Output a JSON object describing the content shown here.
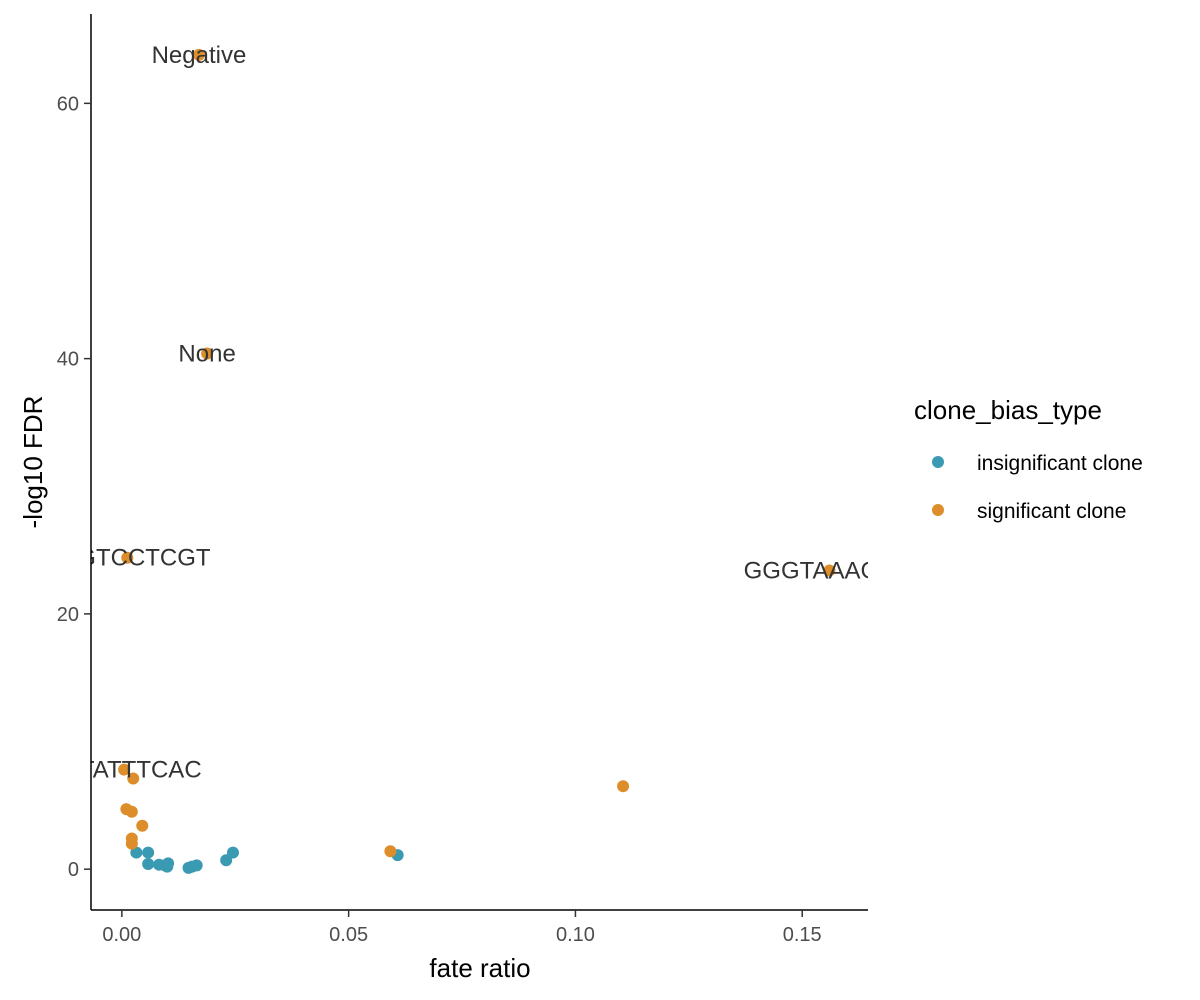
{
  "chart_data": {
    "type": "scatter",
    "xlabel": "fate ratio",
    "ylabel": "-log10 FDR",
    "xlim": [
      -0.0068,
      0.1645
    ],
    "ylim": [
      -3.2,
      67
    ],
    "x_ticks": [
      0.0,
      0.05,
      0.1,
      0.15
    ],
    "x_tick_labels": [
      "0.00",
      "0.05",
      "0.10",
      "0.15"
    ],
    "y_ticks": [
      0,
      20,
      40,
      60
    ],
    "y_tick_labels": [
      "0",
      "20",
      "40",
      "60"
    ],
    "grid": false,
    "legend": {
      "title": "clone_bias_type",
      "placement": "right",
      "entries": [
        {
          "name": "insignificant clone",
          "color": "#3a9ab2"
        },
        {
          "name": "significant clone",
          "color": "#dd8d29"
        }
      ]
    },
    "series": [
      {
        "name": "insignificant clone",
        "color": "#3a9ab2",
        "points": [
          {
            "x": 0.0032,
            "y": 1.3
          },
          {
            "x": 0.0058,
            "y": 1.3
          },
          {
            "x": 0.0058,
            "y": 0.4
          },
          {
            "x": 0.0082,
            "y": 0.35
          },
          {
            "x": 0.0095,
            "y": 0.3
          },
          {
            "x": 0.01,
            "y": 0.2
          },
          {
            "x": 0.0102,
            "y": 0.45
          },
          {
            "x": 0.0147,
            "y": 0.1
          },
          {
            "x": 0.0155,
            "y": 0.2
          },
          {
            "x": 0.0165,
            "y": 0.3
          },
          {
            "x": 0.023,
            "y": 0.7
          },
          {
            "x": 0.0245,
            "y": 1.3
          },
          {
            "x": 0.0608,
            "y": 1.1
          }
        ]
      },
      {
        "name": "significant clone",
        "color": "#dd8d29",
        "points": [
          {
            "x": 0.017,
            "y": 63.8,
            "label": "Negative"
          },
          {
            "x": 0.0188,
            "y": 40.4,
            "label": "None"
          },
          {
            "x": 0.0012,
            "y": 24.4,
            "label": "TGGTCCTCGT"
          },
          {
            "x": 0.156,
            "y": 23.4,
            "label": "GGGTAAAGGC"
          },
          {
            "x": 0.0005,
            "y": 7.8,
            "label": "ACTATTTCAC"
          },
          {
            "x": 0.0025,
            "y": 7.1
          },
          {
            "x": 0.1105,
            "y": 6.5
          },
          {
            "x": 0.001,
            "y": 4.7
          },
          {
            "x": 0.0022,
            "y": 4.5
          },
          {
            "x": 0.0045,
            "y": 3.4
          },
          {
            "x": 0.0022,
            "y": 2.4
          },
          {
            "x": 0.0022,
            "y": 2.0
          },
          {
            "x": 0.0592,
            "y": 1.4
          }
        ]
      }
    ]
  }
}
